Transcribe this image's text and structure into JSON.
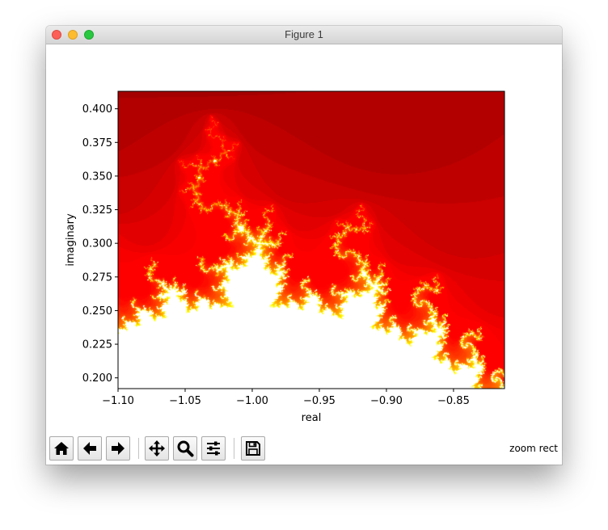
{
  "window": {
    "title": "Figure 1"
  },
  "toolbar": {
    "buttons": [
      {
        "name": "home",
        "icon": "home-icon"
      },
      {
        "name": "back",
        "icon": "arrow-left-icon"
      },
      {
        "name": "forward",
        "icon": "arrow-right-icon"
      },
      {
        "name": "pan",
        "icon": "move-arrows-icon"
      },
      {
        "name": "zoom",
        "icon": "magnifier-icon"
      },
      {
        "name": "subplots",
        "icon": "sliders-icon"
      },
      {
        "name": "save",
        "icon": "floppy-disk-icon"
      }
    ],
    "status": "zoom rect"
  },
  "chart_data": {
    "type": "heatmap",
    "title": "",
    "xlabel": "real",
    "ylabel": "imaginary",
    "xlim": [
      -1.1,
      -0.812
    ],
    "ylim": [
      0.192,
      0.413
    ],
    "xticks": [
      "−1.10",
      "−1.05",
      "−1.00",
      "−0.95",
      "−0.90",
      "−0.85"
    ],
    "xtick_values": [
      -1.1,
      -1.05,
      -1.0,
      -0.95,
      -0.9,
      -0.85
    ],
    "yticks": [
      "0.200",
      "0.225",
      "0.250",
      "0.275",
      "0.300",
      "0.325",
      "0.350",
      "0.375",
      "0.400"
    ],
    "ytick_values": [
      0.2,
      0.225,
      0.25,
      0.275,
      0.3,
      0.325,
      0.35,
      0.375,
      0.4
    ],
    "colormap": "hot",
    "colors": {
      "low": "#3d0000",
      "mid": "#e00000",
      "high": "#ffff00",
      "inside": "#ffffff"
    },
    "max_iter": 60,
    "grid": false,
    "legend": "none"
  }
}
